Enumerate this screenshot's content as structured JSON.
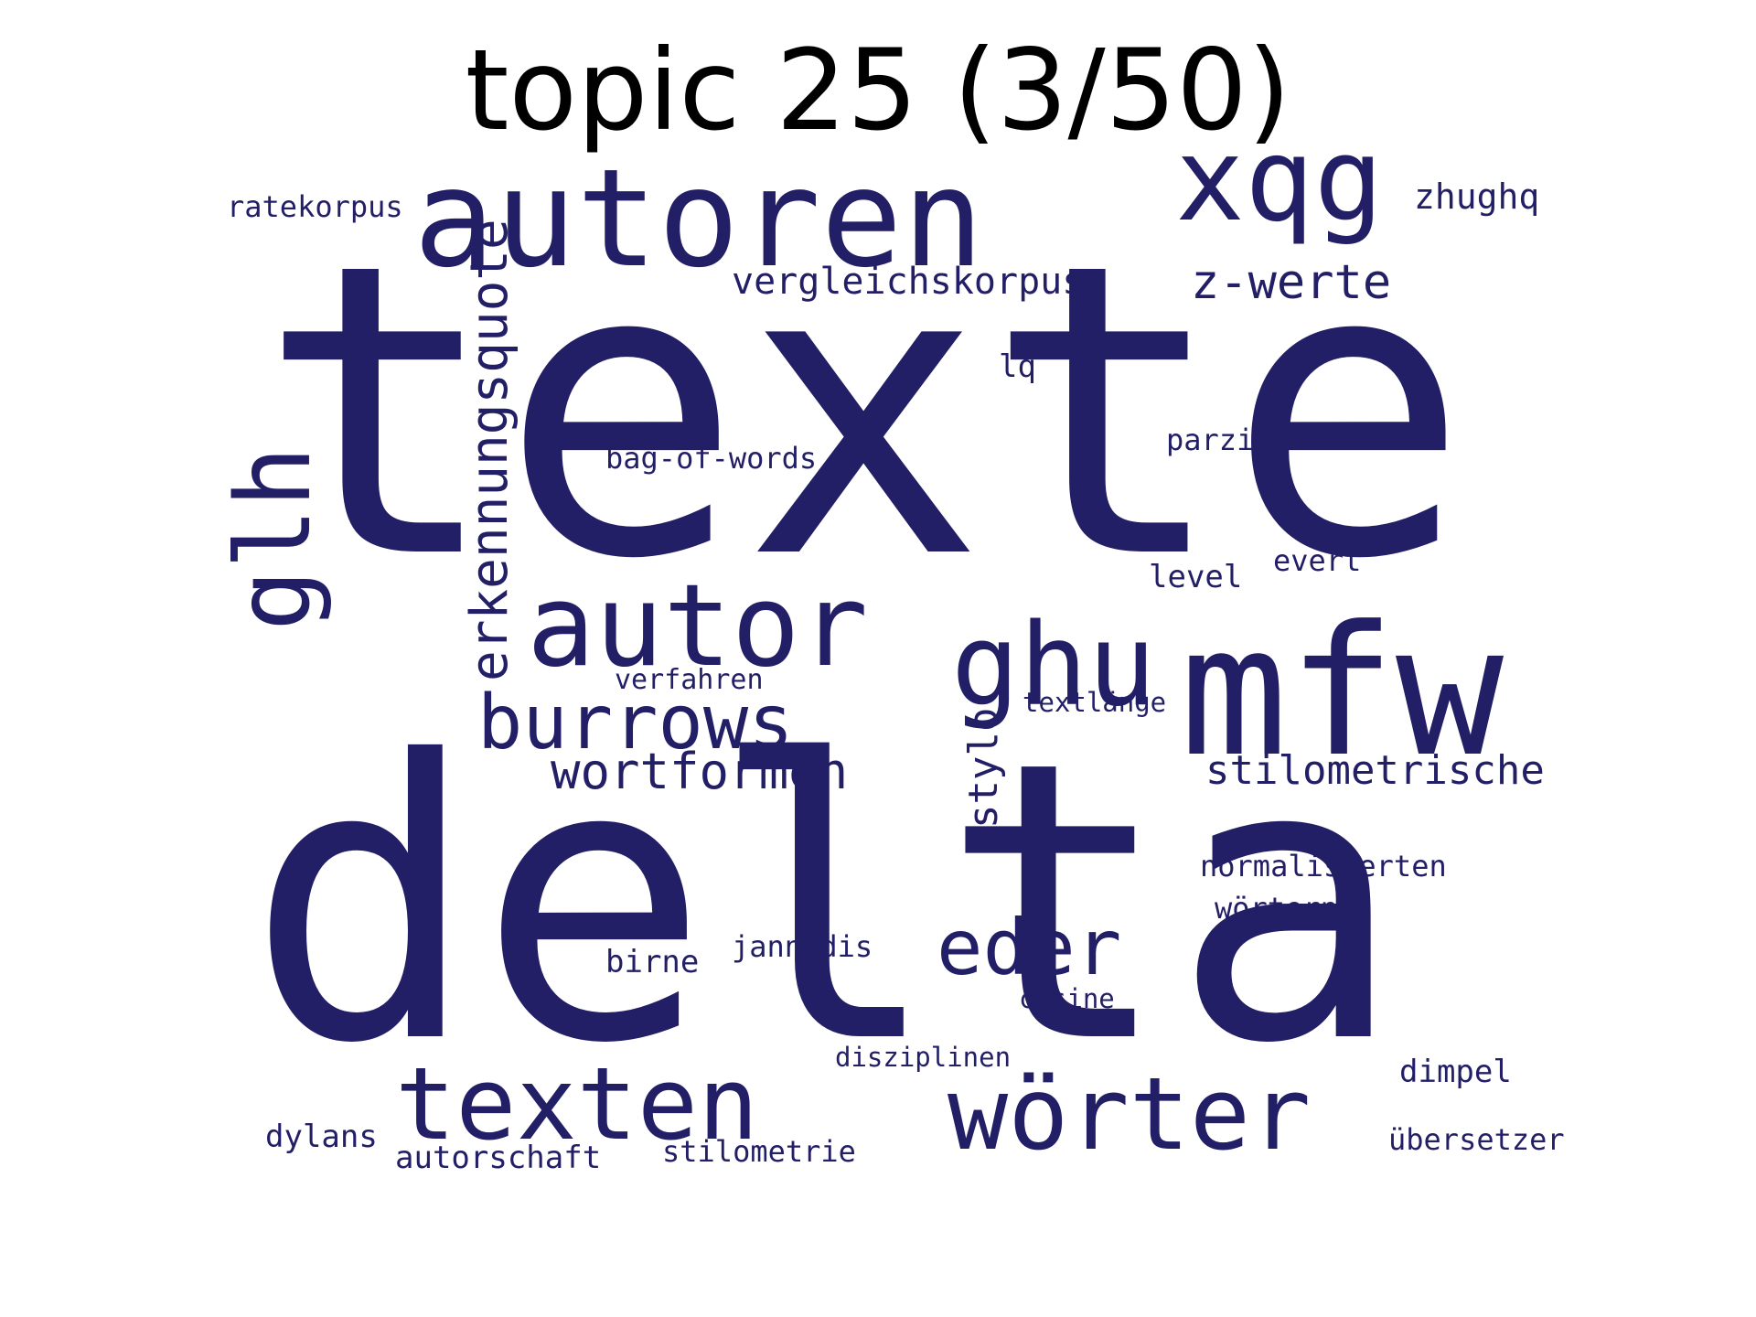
{
  "title": "topic 25 (3/50)",
  "colors": {
    "word": "#221f66",
    "title": "#000000",
    "background": "#ffffff"
  },
  "words": [
    "texte",
    "delta",
    "autoren",
    "xqg",
    "autor",
    "ghu",
    "mfw",
    "glh",
    "burrows",
    "erkennungsquote",
    "texten",
    "wörter",
    "eder",
    "z-werte",
    "wortformen",
    "stilometrische",
    "vergleichskorpus",
    "stylo",
    "zhughq",
    "ratekorpus",
    "lq",
    "parzival",
    "bag-of-words",
    "level",
    "evert",
    "verfahren",
    "textlänge",
    "normalisierten",
    "wörtern",
    "birne",
    "jannidis",
    "cosine",
    "disziplinen",
    "dimpel",
    "dylans",
    "autorschaft",
    "stilometrie",
    "übersetzer"
  ]
}
